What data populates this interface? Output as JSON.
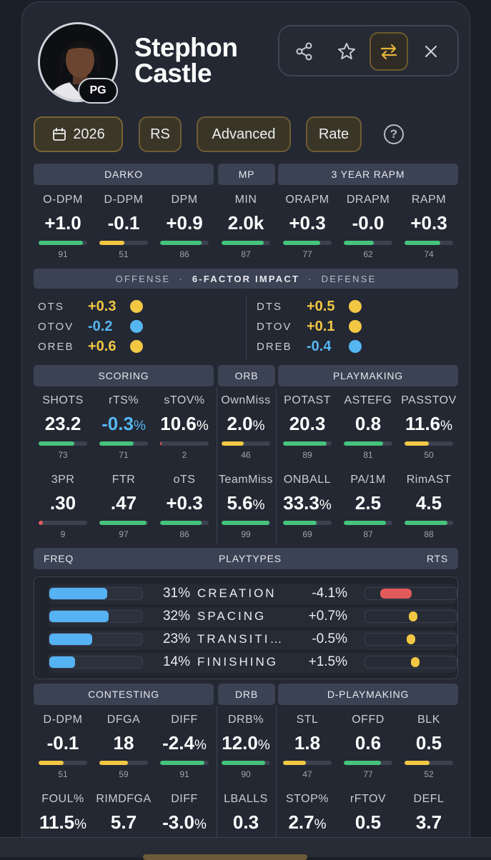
{
  "player": {
    "name_line1": "Stephon",
    "name_line2": "Castle",
    "position": "PG"
  },
  "actions": [
    "share-icon",
    "star-icon",
    "swap-icon",
    "close-icon"
  ],
  "filters": {
    "season": "2026",
    "season_type": "RS",
    "mode": "Advanced",
    "view": "Rate",
    "help": "?"
  },
  "colors": {
    "green": "#46c47c",
    "yellow": "#f2c744",
    "red": "#e25a5a",
    "blue": "#56b6f2",
    "accent": "#e6b43a"
  },
  "sections": {
    "darko": "DARKO",
    "mp": "MP",
    "rapm": "3 YEAR RAPM",
    "scoring": "SCORING",
    "orb": "ORB",
    "playmaking": "PLAYMAKING",
    "contesting": "CONTESTING",
    "drb": "DRB",
    "dplaymaking": "D-PLAYMAKING"
  },
  "top_stats": [
    {
      "label": "O-DPM",
      "value": "+1.0",
      "rank": "91"
    },
    {
      "label": "D-DPM",
      "value": "-0.1",
      "rank": "51"
    },
    {
      "label": "DPM",
      "value": "+0.9",
      "rank": "86"
    },
    {
      "label": "MIN",
      "value": "2.0k",
      "rank": "87"
    },
    {
      "label": "ORAPM",
      "value": "+0.3",
      "rank": "77"
    },
    {
      "label": "DRAPM",
      "value": "-0.0",
      "rank": "62"
    },
    {
      "label": "RAPM",
      "value": "+0.3",
      "rank": "74"
    }
  ],
  "impact": {
    "header_left": "OFFENSE",
    "header_center": "6-FACTOR IMPACT",
    "header_right": "DEFENSE",
    "sep": "·",
    "offense": [
      {
        "label": "OTS",
        "value": "+0.3",
        "color": "#f2c744"
      },
      {
        "label": "OTOV",
        "value": "-0.2",
        "color": "#56b6f2"
      },
      {
        "label": "OREB",
        "value": "+0.6",
        "color": "#f2c744"
      }
    ],
    "defense": [
      {
        "label": "DTS",
        "value": "+0.5",
        "color": "#f2c744"
      },
      {
        "label": "DTOV",
        "value": "+0.1",
        "color": "#f2c744"
      },
      {
        "label": "DREB",
        "value": "-0.4",
        "color": "#56b6f2"
      }
    ]
  },
  "offense_row1": [
    {
      "label": "SHOTS",
      "value": "23.2",
      "rank": "73"
    },
    {
      "label": "rTS%",
      "value": "-0.3",
      "unit": "%",
      "rank": "71"
    },
    {
      "label": "sTOV%",
      "value": "10.6",
      "unit": "%",
      "rank": "2"
    },
    {
      "label": "OwnMiss",
      "value": "2.0",
      "unit": "%",
      "rank": "46"
    },
    {
      "label": "POTAST",
      "value": "20.3",
      "rank": "89"
    },
    {
      "label": "ASTEFG",
      "value": "0.8",
      "rank": "81"
    },
    {
      "label": "PASSTOV",
      "value": "11.6",
      "unit": "%",
      "rank": "50"
    }
  ],
  "offense_row2": [
    {
      "label": "3PR",
      "value": ".30",
      "rank": "9"
    },
    {
      "label": "FTR",
      "value": ".47",
      "rank": "97"
    },
    {
      "label": "oTS",
      "value": "+0.3",
      "rank": "86"
    },
    {
      "label": "TeamMiss",
      "value": "5.6",
      "unit": "%",
      "rank": "99"
    },
    {
      "label": "ONBALL",
      "value": "33.3",
      "unit": "%",
      "rank": "69"
    },
    {
      "label": "PA/1M",
      "value": "2.5",
      "rank": "87"
    },
    {
      "label": "RimAST",
      "value": "4.5",
      "rank": "88"
    }
  ],
  "playtypes": {
    "header_left": "FREQ",
    "header_center": "PLAYTYPES",
    "header_right": "RTS",
    "rows": [
      {
        "name": "CREATION",
        "freq": "31%",
        "rts": "-4.1%",
        "freq_value": 31,
        "rts_value": -4.1
      },
      {
        "name": "SPACING",
        "freq": "32%",
        "rts": "+0.7%",
        "freq_value": 32,
        "rts_value": 0.7
      },
      {
        "name": "TRANSITI…",
        "freq": "23%",
        "rts": "-0.5%",
        "freq_value": 23,
        "rts_value": -0.5
      },
      {
        "name": "FINISHING",
        "freq": "14%",
        "rts": "+1.5%",
        "freq_value": 14,
        "rts_value": 1.5
      }
    ]
  },
  "defense_row1": [
    {
      "label": "D-DPM",
      "value": "-0.1",
      "rank": "51"
    },
    {
      "label": "DFGA",
      "value": "18",
      "rank": "59"
    },
    {
      "label": "DIFF",
      "value": "-2.4",
      "unit": "%",
      "rank": "91"
    },
    {
      "label": "DRB%",
      "value": "12.0",
      "unit": "%",
      "rank": "90"
    },
    {
      "label": "STL",
      "value": "1.8",
      "rank": "47"
    },
    {
      "label": "OFFD",
      "value": "0.6",
      "rank": "77"
    },
    {
      "label": "BLK",
      "value": "0.5",
      "rank": "52"
    }
  ],
  "defense_row2": [
    {
      "label": "FOUL%",
      "value": "11.5",
      "unit": "%"
    },
    {
      "label": "RIMDFGA",
      "value": "5.7"
    },
    {
      "label": "DIFF",
      "value": "-3.0",
      "unit": "%"
    },
    {
      "label": "LBALLS",
      "value": "0.3"
    },
    {
      "label": "STOP%",
      "value": "2.7",
      "unit": "%"
    },
    {
      "label": "rFTOV",
      "value": "0.5"
    },
    {
      "label": "DEFL",
      "value": "3.7"
    }
  ]
}
